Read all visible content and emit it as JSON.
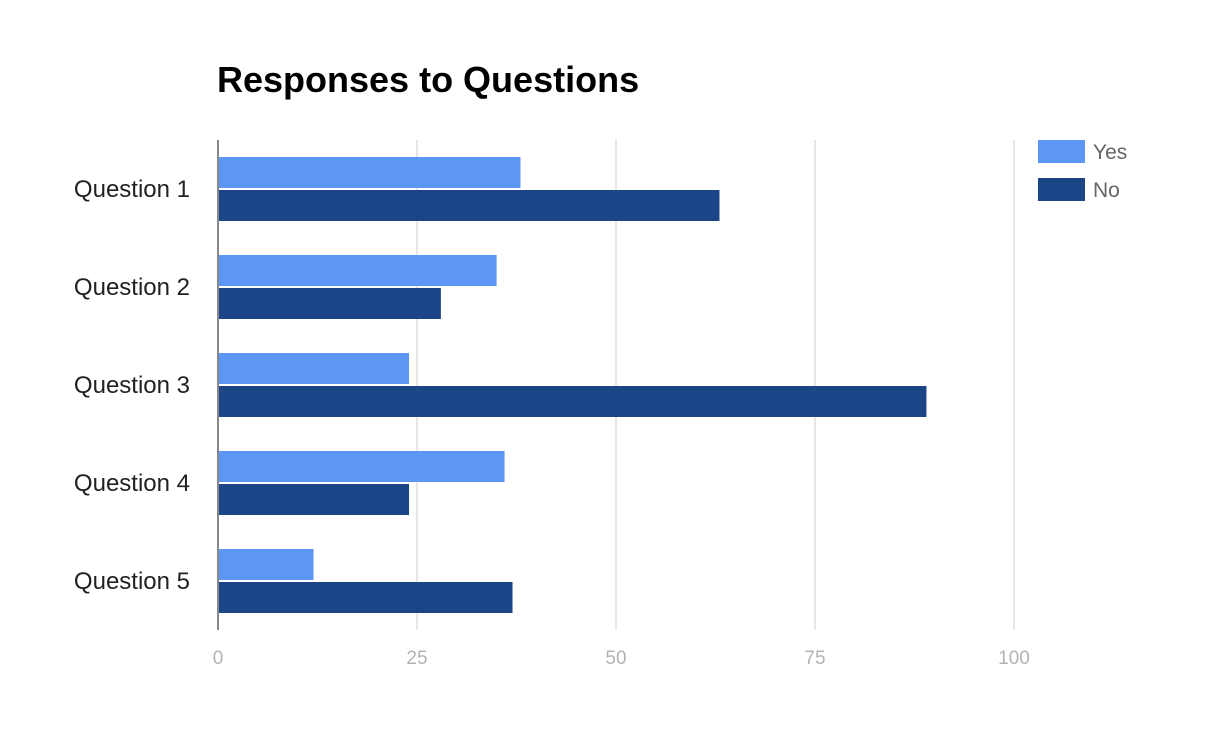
{
  "chart_data": {
    "type": "bar",
    "orientation": "horizontal",
    "title": "Responses to Questions",
    "categories": [
      "Question 1",
      "Question 2",
      "Question 3",
      "Question 4",
      "Question 5"
    ],
    "series": [
      {
        "name": "Yes",
        "color": "#5c97f6",
        "values": [
          38,
          35,
          24,
          36,
          12
        ]
      },
      {
        "name": "No",
        "color": "#1c4587",
        "values": [
          63,
          28,
          89,
          24,
          37
        ]
      }
    ],
    "xlim": [
      0,
      100
    ],
    "xticks": [
      0,
      25,
      50,
      75,
      100
    ],
    "grid": true,
    "legend_position": "top-right"
  }
}
